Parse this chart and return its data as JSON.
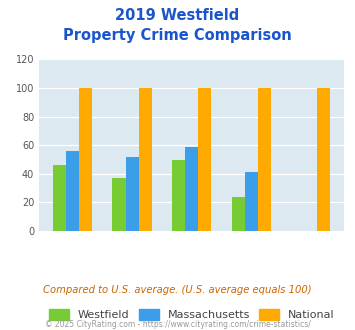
{
  "title_line1": "2019 Westfield",
  "title_line2": "Property Crime Comparison",
  "westfield": [
    46,
    37,
    50,
    24,
    0
  ],
  "massachusetts": [
    56,
    52,
    59,
    41,
    0
  ],
  "national": [
    100,
    100,
    100,
    100,
    100
  ],
  "bar_colors": {
    "westfield": "#77cc33",
    "massachusetts": "#3b9ee8",
    "national": "#ffaa00"
  },
  "ylim": [
    0,
    120
  ],
  "yticks": [
    0,
    20,
    40,
    60,
    80,
    100,
    120
  ],
  "background_color": "#dce9f0",
  "title_color": "#1a55cc",
  "xlabel_color": "#9999bb",
  "legend_label_color": "#444444",
  "subtitle_color": "#cc6600",
  "footer_color": "#999999",
  "subtitle_text": "Compared to U.S. average. (U.S. average equals 100)",
  "footer_text": "© 2025 CityRating.com - https://www.cityrating.com/crime-statistics/"
}
